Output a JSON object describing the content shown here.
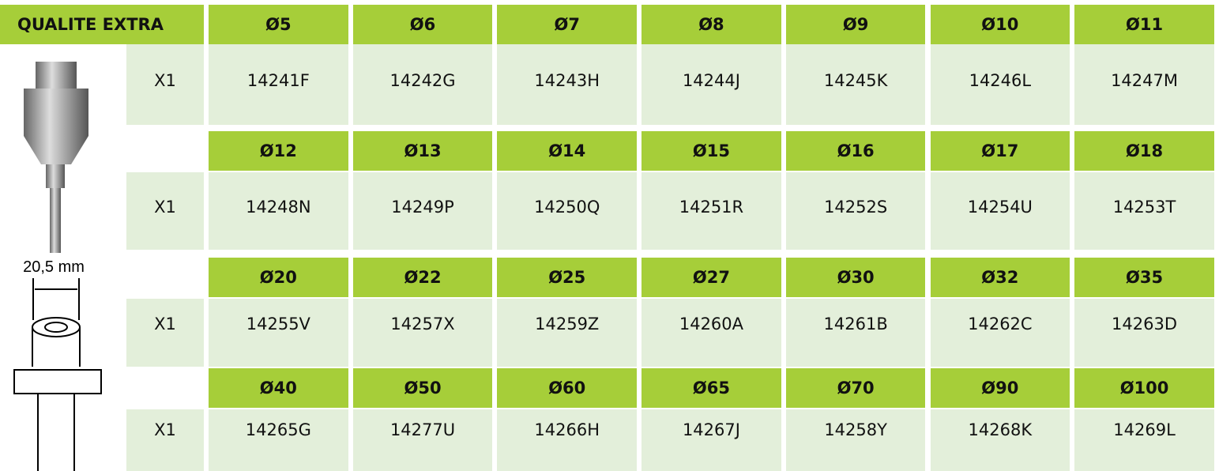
{
  "header": {
    "title": "QUALITE EXTRA"
  },
  "image_label": "20,5 mm",
  "table": {
    "blocks": [
      {
        "sizes": [
          "Ø5",
          "Ø6",
          "Ø7",
          "Ø8",
          "Ø9",
          "Ø10",
          "Ø11"
        ],
        "qty": "X1",
        "codes": [
          "14241F",
          "14242G",
          "14243H",
          "14244J",
          "14245K",
          "14246L",
          "14247M"
        ]
      },
      {
        "sizes": [
          "Ø12",
          "Ø13",
          "Ø14",
          "Ø15",
          "Ø16",
          "Ø17",
          "Ø18"
        ],
        "qty": "X1",
        "codes": [
          "14248N",
          "14249P",
          "14250Q",
          "14251R",
          "14252S",
          "14254U",
          "14253T"
        ]
      },
      {
        "sizes": [
          "Ø20",
          "Ø22",
          "Ø25",
          "Ø27",
          "Ø30",
          "Ø32",
          "Ø35"
        ],
        "qty": "X1",
        "codes": [
          "14255V",
          "14257X",
          "14259Z",
          "14260A",
          "14261B",
          "14262C",
          "14263D"
        ]
      },
      {
        "sizes": [
          "Ø40",
          "Ø50",
          "Ø60",
          "Ø65",
          "Ø70",
          "Ø90",
          "Ø100"
        ],
        "qty": "X1",
        "codes": [
          "14265G",
          "14277U",
          "14266H",
          "14267J",
          "14258Y",
          "14268K",
          "14269L"
        ]
      }
    ]
  }
}
